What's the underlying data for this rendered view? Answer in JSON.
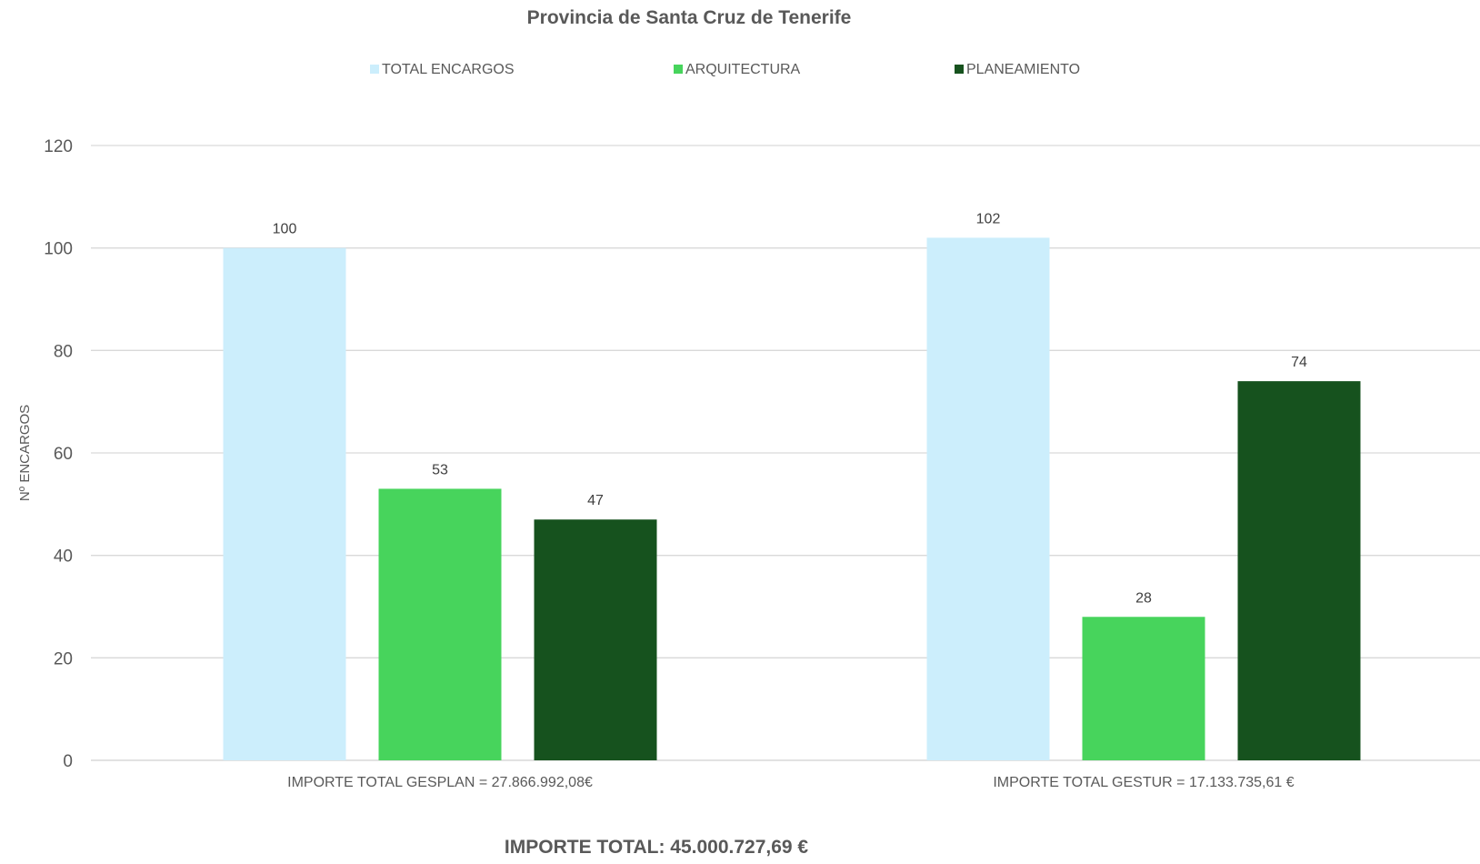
{
  "chart_data": {
    "type": "bar",
    "title": "Provincia de Santa Cruz de Tenerife",
    "ylabel": "Nº ENCARGOS",
    "xlabel": "",
    "ylim": [
      0,
      120
    ],
    "yticks": [
      0,
      20,
      40,
      60,
      80,
      100,
      120
    ],
    "grid": true,
    "legend_position": "top",
    "categories": [
      "IMPORTE TOTAL GESPLAN = 27.866.992,08€",
      "IMPORTE TOTAL GESTUR = 17.133.735,61 €"
    ],
    "series": [
      {
        "name": "TOTAL ENCARGOS",
        "color": "#cceefc",
        "values": [
          100,
          102
        ]
      },
      {
        "name": "ARQUITECTURA",
        "color": "#47d45c",
        "values": [
          53,
          28
        ]
      },
      {
        "name": "PLANEAMIENTO",
        "color": "#16521e",
        "values": [
          47,
          74
        ]
      }
    ],
    "footer": "IMPORTE TOTAL: 45.000.727,69 €"
  }
}
